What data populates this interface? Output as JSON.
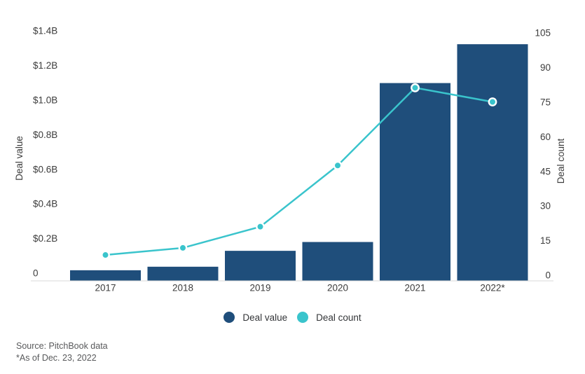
{
  "chart_data": {
    "type": "combo-bar-line",
    "categories": [
      "2017",
      "2018",
      "2019",
      "2020",
      "2021",
      "2022*"
    ],
    "series": [
      {
        "name": "Deal value",
        "type": "bar",
        "axis": "left",
        "unit": "USD billions",
        "values": [
          0.06,
          0.08,
          0.17,
          0.22,
          1.12,
          1.34
        ]
      },
      {
        "name": "Deal count",
        "type": "line",
        "axis": "right",
        "values": [
          11,
          14,
          23,
          49,
          82,
          76
        ]
      }
    ],
    "left_axis": {
      "label": "Deal value",
      "min": 0,
      "max": 1.4,
      "ticks": [
        "0",
        "$0.2B",
        "$0.4B",
        "$0.6B",
        "$0.8B",
        "$1.0B",
        "$1.2B",
        "$1.4B"
      ]
    },
    "right_axis": {
      "label": "Deal count",
      "min": 0,
      "max": 105,
      "ticks": [
        "0",
        "15",
        "30",
        "45",
        "60",
        "75",
        "90",
        "105"
      ]
    },
    "grid": false,
    "legend_position": "bottom"
  },
  "legend": {
    "items": [
      {
        "label": "Deal value",
        "color": "#1f4e7b"
      },
      {
        "label": "Deal count",
        "color": "#3ac4cc"
      }
    ]
  },
  "footer": {
    "source_line": "Source: PitchBook data",
    "asof_line": "*As of Dec. 23, 2022"
  },
  "colors": {
    "bar": "#1f4e7b",
    "line": "#3ac4cc",
    "marker_fill": "#3ac4cc",
    "marker_ring": "#ffffff",
    "axis_line": "#dadada",
    "tick_text": "#3c3c3c",
    "axis_title_text": "#3c3c3c"
  }
}
